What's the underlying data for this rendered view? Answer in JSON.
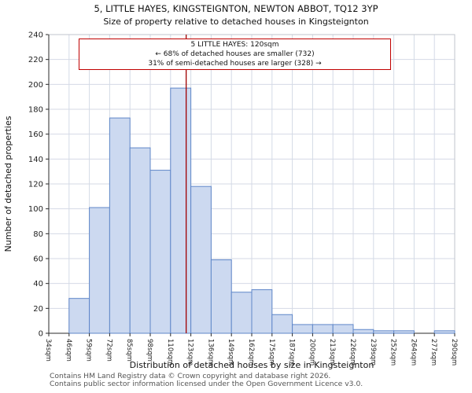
{
  "title": "5, LITTLE HAYES, KINGSTEIGNTON, NEWTON ABBOT, TQ12 3YP",
  "subtitle": "Size of property relative to detached houses in Kingsteignton",
  "annotation": {
    "line1": "5 LITTLE HAYES: 120sqm",
    "line2": "← 68% of detached houses are smaller (732)",
    "line3": "31% of semi-detached houses are larger (328) →"
  },
  "footer": {
    "line1": "Contains HM Land Registry data © Crown copyright and database right 2026.",
    "line2": "Contains public sector information licensed under the Open Government Licence v3.0."
  },
  "chart_data": {
    "type": "bar",
    "title": "5, LITTLE HAYES, KINGSTEIGNTON, NEWTON ABBOT, TQ12 3YP",
    "subtitle": "Size of property relative to detached houses in Kingsteignton",
    "xlabel": "Distribution of detached houses by size in Kingsteignton",
    "ylabel": "Number of detached properties",
    "x_tick_labels": [
      "34sqm",
      "46sqm",
      "59sqm",
      "72sqm",
      "85sqm",
      "98sqm",
      "110sqm",
      "123sqm",
      "136sqm",
      "149sqm",
      "162sqm",
      "175sqm",
      "187sqm",
      "200sqm",
      "213sqm",
      "226sqm",
      "239sqm",
      "252sqm",
      "264sqm",
      "277sqm",
      "290sqm"
    ],
    "bin_edges_sqm": [
      34,
      46,
      59,
      72,
      85,
      98,
      110,
      123,
      136,
      149,
      162,
      175,
      187,
      200,
      213,
      226,
      239,
      252,
      264,
      277,
      290
    ],
    "values": [
      0,
      28,
      101,
      173,
      149,
      131,
      197,
      118,
      59,
      33,
      35,
      15,
      7,
      7,
      7,
      3,
      2,
      2,
      0,
      2
    ],
    "ylim": [
      0,
      240
    ],
    "y_tick_step": 20,
    "grid": true,
    "marker_value_sqm": 120,
    "colors": {
      "bar_fill": "#ccd9f0",
      "bar_stroke": "#5f87c9",
      "marker_line": "#a00000",
      "grid": "#d4dae6",
      "spine": "#c0c4cc",
      "axis": "#2a2a2a",
      "text": "#222222",
      "annotation_border": "#c00000"
    }
  }
}
